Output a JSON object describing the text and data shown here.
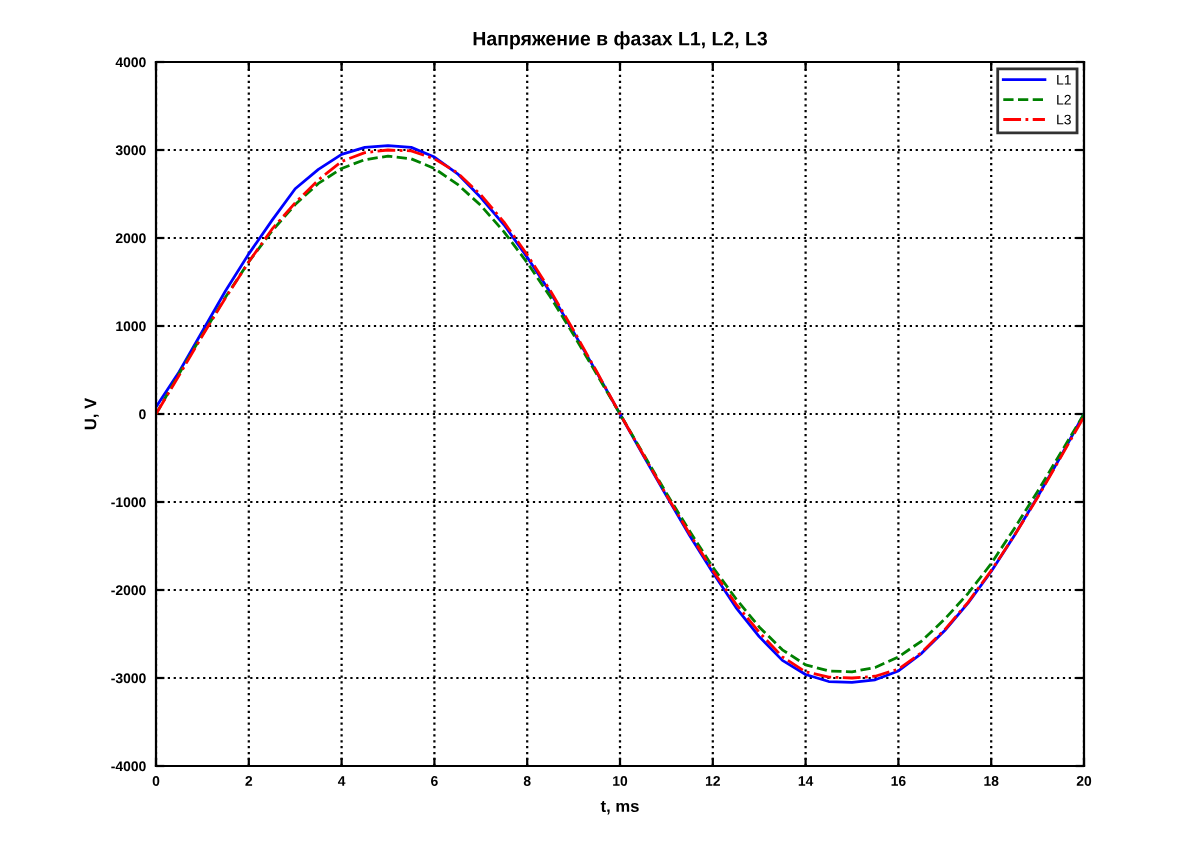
{
  "chart_data": {
    "type": "line",
    "title": "Напряжение в фазах L1, L2, L3",
    "xlabel": "t, ms",
    "ylabel": "U, V",
    "x": [
      0,
      0.5,
      1,
      1.5,
      2,
      2.5,
      3,
      3.5,
      4,
      4.5,
      5,
      5.5,
      6,
      6.5,
      7,
      7.5,
      8,
      8.5,
      9,
      9.5,
      10,
      10.5,
      11,
      11.5,
      12,
      12.5,
      13,
      13.5,
      14,
      14.5,
      15,
      15.5,
      16,
      16.5,
      17,
      17.5,
      18,
      18.5,
      19,
      19.5,
      20
    ],
    "series": [
      {
        "name": "L1",
        "color": "#0000ff",
        "line_style": "solid",
        "values": [
          80,
          480,
          940,
          1400,
          1820,
          2200,
          2560,
          2780,
          2950,
          3030,
          3050,
          3030,
          2920,
          2730,
          2460,
          2150,
          1780,
          1380,
          930,
          470,
          0,
          -470,
          -930,
          -1380,
          -1800,
          -2200,
          -2530,
          -2800,
          -2960,
          -3040,
          -3050,
          -3020,
          -2920,
          -2720,
          -2460,
          -2150,
          -1790,
          -1380,
          -940,
          -480,
          0
        ]
      },
      {
        "name": "L2",
        "color": "#008000",
        "line_style": "dashed",
        "values": [
          0,
          460,
          900,
          1330,
          1730,
          2080,
          2380,
          2620,
          2790,
          2890,
          2930,
          2900,
          2790,
          2610,
          2370,
          2070,
          1720,
          1330,
          900,
          450,
          0,
          -450,
          -900,
          -1330,
          -1740,
          -2100,
          -2420,
          -2680,
          -2850,
          -2920,
          -2930,
          -2880,
          -2760,
          -2580,
          -2330,
          -2040,
          -1700,
          -1300,
          -880,
          -440,
          0
        ]
      },
      {
        "name": "L3",
        "color": "#ff0000",
        "line_style": "dashdot",
        "values": [
          0,
          440,
          890,
          1320,
          1730,
          2100,
          2400,
          2660,
          2870,
          2970,
          3000,
          2990,
          2900,
          2740,
          2490,
          2180,
          1810,
          1400,
          950,
          480,
          0,
          -460,
          -920,
          -1360,
          -1780,
          -2160,
          -2480,
          -2760,
          -2930,
          -2990,
          -3000,
          -2980,
          -2900,
          -2710,
          -2450,
          -2140,
          -1780,
          -1380,
          -950,
          -490,
          -30
        ]
      }
    ],
    "xlim": [
      0,
      20
    ],
    "xticks": [
      0,
      2,
      4,
      6,
      8,
      10,
      12,
      14,
      16,
      18,
      20
    ],
    "ylim": [
      -4000,
      4000
    ],
    "yticks": [
      -4000,
      -3000,
      -2000,
      -1000,
      0,
      1000,
      2000,
      3000,
      4000
    ],
    "grid": true,
    "legend": "top right",
    "marker": "none"
  }
}
